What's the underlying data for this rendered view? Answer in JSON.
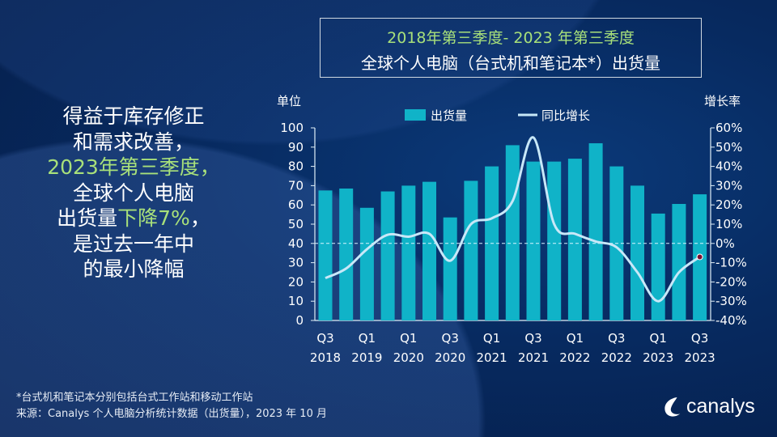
{
  "title": {
    "line1": "2018年第三季度- 2023 年第三季度",
    "line2": "全球个人电脑（台式机和笔记本*）出货量"
  },
  "left_text": {
    "l1": "得益于库存修正",
    "l2": "和需求改善，",
    "l3": "2023年第三季度，",
    "l4": "全球个人电脑",
    "l5a": "出货量",
    "l5b": "下降7%",
    "l5c": "，",
    "l6": "是过去一年中",
    "l7": "的最小降幅"
  },
  "footer": {
    "note": "*台式机和笔记本分别包括台式工作站和移动工作站",
    "source": "来源：Canalys 个人电脑分析统计数据（出货量），2023 年 10 月"
  },
  "logo": {
    "text": "canalys"
  },
  "colors": {
    "bar": "#10b3c8",
    "line": "#c8e8f8",
    "highlight": "#a8e07a",
    "background": "#072a60"
  },
  "chart_data": {
    "type": "bar+line",
    "ylabel_left": "单位",
    "ylabel_right": "增长率",
    "legend": [
      "出货量",
      "同比增长"
    ],
    "legend_placement": "top",
    "ylim_left": [
      0,
      100
    ],
    "ylim_right": [
      -40,
      60
    ],
    "yticks_left": [
      "0",
      "10",
      "20",
      "30",
      "40",
      "50",
      "60",
      "70",
      "80",
      "90",
      "100"
    ],
    "yticks_right": [
      "-40%",
      "-30%",
      "-20%",
      "-10%",
      "0%",
      "10%",
      "20%",
      "30%",
      "40%",
      "50%",
      "60%"
    ],
    "x_labels": [
      [
        "Q3",
        "2018"
      ],
      [
        "Q1",
        "2019"
      ],
      [
        "Q1",
        "2020"
      ],
      [
        "Q3",
        "2020"
      ],
      [
        "Q1",
        "2021"
      ],
      [
        "Q3",
        "2021"
      ],
      [
        "Q1",
        "2022"
      ],
      [
        "Q3",
        "2022"
      ],
      [
        "Q1",
        "2023"
      ],
      [
        "Q3",
        "2023"
      ]
    ],
    "series": [
      {
        "name": "出货量",
        "type": "bar",
        "axis": "left",
        "values": [
          67.5,
          68.5,
          58.5,
          67,
          70,
          72,
          53.5,
          72.5,
          80,
          91,
          82.5,
          82.5,
          84,
          92,
          80,
          70,
          55.5,
          60.5,
          65.5
        ]
      },
      {
        "name": "同比增长",
        "type": "line",
        "axis": "right",
        "unit": "%",
        "values": [
          -18,
          -13,
          -3,
          4.5,
          3.5,
          5,
          -9,
          10,
          13,
          22,
          55,
          10,
          5,
          1,
          -2,
          -15,
          -30,
          -15,
          -7
        ]
      }
    ]
  }
}
